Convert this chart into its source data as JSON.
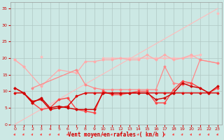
{
  "bg_color": "#cce8e4",
  "grid_color": "#b0c8c4",
  "xlabel": "Vent moyen/en rafales ( km/h )",
  "xlabel_color": "#cc0000",
  "ylabel_color": "#cc0000",
  "xlim": [
    -0.5,
    23.5
  ],
  "ylim": [
    0,
    37
  ],
  "yticks": [
    0,
    5,
    10,
    15,
    20,
    25,
    30,
    35
  ],
  "xticks": [
    0,
    1,
    2,
    3,
    4,
    5,
    6,
    7,
    8,
    9,
    10,
    11,
    12,
    13,
    14,
    15,
    16,
    17,
    18,
    19,
    20,
    21,
    22,
    23
  ],
  "lines": [
    {
      "x": [
        0,
        23
      ],
      "y": [
        0,
        35
      ],
      "color": "#ffbbbb",
      "lw": 0.8,
      "marker": null,
      "ms": 0
    },
    {
      "x": [
        0,
        1,
        2,
        3,
        4,
        5,
        6,
        7,
        8,
        9,
        10,
        11,
        12,
        13,
        14,
        15,
        16,
        17,
        18,
        19,
        20,
        21,
        22,
        23
      ],
      "y": [
        19.5,
        17.5,
        null,
        20.5,
        null,
        null,
        null,
        null,
        null,
        null,
        20.0,
        20.0,
        20.0,
        20.0,
        20.0,
        20.0,
        20.0,
        20.0,
        20.0,
        20.0,
        20.5,
        21.0,
        null,
        33.5
      ],
      "color": "#ffbbbb",
      "lw": 1.0,
      "marker": "D",
      "ms": 1.5
    },
    {
      "x": [
        0,
        1,
        3,
        5,
        7,
        8,
        9,
        10,
        11,
        12,
        13,
        14,
        15,
        16,
        17,
        18,
        19,
        20,
        21,
        23
      ],
      "y": [
        19.5,
        17.5,
        11.5,
        16.5,
        15.5,
        19.0,
        19.0,
        19.5,
        19.5,
        20.0,
        19.5,
        19.5,
        21.0,
        19.5,
        21.0,
        19.5,
        20.0,
        21.0,
        19.5,
        18.5
      ],
      "color": "#ffaaaa",
      "lw": 0.9,
      "marker": "D",
      "ms": 1.5
    },
    {
      "x": [
        2,
        7,
        8,
        9,
        10,
        11,
        12,
        13,
        14,
        15,
        16,
        17,
        18,
        19,
        20,
        21,
        23
      ],
      "y": [
        11.0,
        16.5,
        12.0,
        11.0,
        10.5,
        10.5,
        10.5,
        10.5,
        10.5,
        10.5,
        10.5,
        17.5,
        12.5,
        12.0,
        12.5,
        19.5,
        18.5
      ],
      "color": "#ff8888",
      "lw": 0.9,
      "marker": "D",
      "ms": 1.5
    },
    {
      "x": [
        0,
        1,
        2,
        3,
        4,
        5,
        6,
        7,
        8,
        9,
        10,
        11,
        12,
        13,
        14,
        15,
        16,
        17,
        18,
        19,
        20,
        21,
        22,
        23
      ],
      "y": [
        11.0,
        9.5,
        6.5,
        4.5,
        5.0,
        7.5,
        8.0,
        4.5,
        4.0,
        3.5,
        10.0,
        9.0,
        9.0,
        9.5,
        10.0,
        10.0,
        6.5,
        6.5,
        10.5,
        13.0,
        12.5,
        11.0,
        9.5,
        11.0
      ],
      "color": "#ff4444",
      "lw": 1.0,
      "marker": "D",
      "ms": 1.5
    },
    {
      "x": [
        0,
        1,
        2,
        3,
        4,
        5,
        6,
        7,
        8,
        9,
        10,
        11,
        12,
        13,
        14,
        15,
        16,
        17,
        18,
        19,
        20,
        21,
        22,
        23
      ],
      "y": [
        9.5,
        9.5,
        7.0,
        7.5,
        4.5,
        5.0,
        5.5,
        8.5,
        9.5,
        9.5,
        9.5,
        9.5,
        9.5,
        9.5,
        9.5,
        9.5,
        9.5,
        9.5,
        9.5,
        9.5,
        9.5,
        9.5,
        9.5,
        9.5
      ],
      "color": "#dd0000",
      "lw": 1.0,
      "marker": "D",
      "ms": 1.5
    },
    {
      "x": [
        0,
        1,
        2,
        3,
        4,
        5,
        6,
        7,
        8,
        9,
        10,
        11,
        12,
        13,
        14,
        15,
        16,
        17,
        18,
        19,
        20,
        21,
        22,
        23
      ],
      "y": [
        11.0,
        9.5,
        6.5,
        8.0,
        5.0,
        5.5,
        5.0,
        4.5,
        4.5,
        4.5,
        9.5,
        9.5,
        9.5,
        9.5,
        9.5,
        9.5,
        7.5,
        8.0,
        9.5,
        12.5,
        11.5,
        11.0,
        9.5,
        11.5
      ],
      "color": "#cc0000",
      "lw": 1.0,
      "marker": "D",
      "ms": 1.5
    }
  ]
}
